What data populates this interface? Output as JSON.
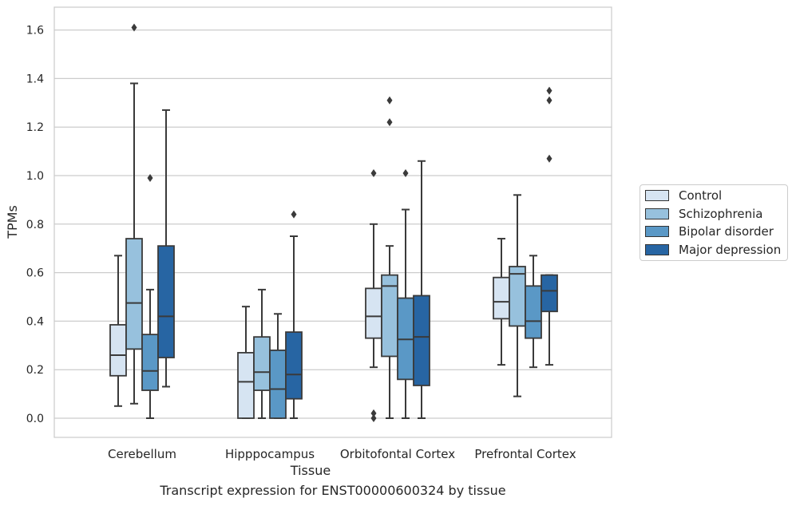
{
  "caption": "Transcript expression for ENST00000600324 by tissue",
  "chart_data": {
    "type": "boxplot",
    "title": "",
    "xlabel": "Tissue",
    "ylabel": "TPMs",
    "ylim": [
      -0.08,
      1.69
    ],
    "yticks": [
      "0.0",
      "0.2",
      "0.4",
      "0.6",
      "0.8",
      "1.0",
      "1.2",
      "1.4",
      "1.6"
    ],
    "grid": true,
    "legend_position": "right",
    "categories": [
      "Cerebellum",
      "Hipppocampus",
      "Orbitofontal Cortex",
      "Prefrontal Cortex"
    ],
    "series": [
      {
        "name": "Control",
        "color": "#d6e4f2",
        "boxes": [
          {
            "whislo": 0.05,
            "q1": 0.175,
            "med": 0.26,
            "q3": 0.385,
            "whishi": 0.67,
            "fliers": []
          },
          {
            "whislo": 0.0,
            "q1": 0.0,
            "med": 0.15,
            "q3": 0.27,
            "whishi": 0.46,
            "fliers": []
          },
          {
            "whislo": 0.21,
            "q1": 0.33,
            "med": 0.42,
            "q3": 0.535,
            "whishi": 0.8,
            "fliers": [
              1.01,
              0.02,
              0.0
            ]
          },
          {
            "whislo": 0.22,
            "q1": 0.41,
            "med": 0.48,
            "q3": 0.58,
            "whishi": 0.74,
            "fliers": []
          }
        ]
      },
      {
        "name": "Schizophrenia",
        "color": "#97c1dd",
        "boxes": [
          {
            "whislo": 0.06,
            "q1": 0.285,
            "med": 0.475,
            "q3": 0.74,
            "whishi": 1.38,
            "fliers": [
              1.61
            ]
          },
          {
            "whislo": 0.0,
            "q1": 0.115,
            "med": 0.19,
            "q3": 0.335,
            "whishi": 0.53,
            "fliers": []
          },
          {
            "whislo": 0.0,
            "q1": 0.255,
            "med": 0.545,
            "q3": 0.59,
            "whishi": 0.71,
            "fliers": [
              1.31,
              1.22
            ]
          },
          {
            "whislo": 0.09,
            "q1": 0.38,
            "med": 0.595,
            "q3": 0.625,
            "whishi": 0.92,
            "fliers": []
          }
        ]
      },
      {
        "name": "Bipolar disorder",
        "color": "#5a98c6",
        "boxes": [
          {
            "whislo": 0.0,
            "q1": 0.115,
            "med": 0.195,
            "q3": 0.345,
            "whishi": 0.53,
            "fliers": [
              0.99
            ]
          },
          {
            "whislo": 0.0,
            "q1": 0.0,
            "med": 0.12,
            "q3": 0.28,
            "whishi": 0.43,
            "fliers": []
          },
          {
            "whislo": 0.0,
            "q1": 0.16,
            "med": 0.325,
            "q3": 0.495,
            "whishi": 0.86,
            "fliers": [
              1.01
            ]
          },
          {
            "whislo": 0.21,
            "q1": 0.33,
            "med": 0.4,
            "q3": 0.545,
            "whishi": 0.67,
            "fliers": []
          }
        ]
      },
      {
        "name": "Major depression",
        "color": "#2765a3",
        "boxes": [
          {
            "whislo": 0.13,
            "q1": 0.25,
            "med": 0.42,
            "q3": 0.71,
            "whishi": 1.27,
            "fliers": []
          },
          {
            "whislo": 0.0,
            "q1": 0.08,
            "med": 0.18,
            "q3": 0.355,
            "whishi": 0.75,
            "fliers": [
              0.84
            ]
          },
          {
            "whislo": 0.0,
            "q1": 0.135,
            "med": 0.335,
            "q3": 0.505,
            "whishi": 1.06,
            "fliers": []
          },
          {
            "whislo": 0.22,
            "q1": 0.44,
            "med": 0.525,
            "q3": 0.59,
            "whishi": 0.59,
            "fliers": [
              1.35,
              1.31,
              1.07
            ]
          }
        ]
      }
    ]
  }
}
